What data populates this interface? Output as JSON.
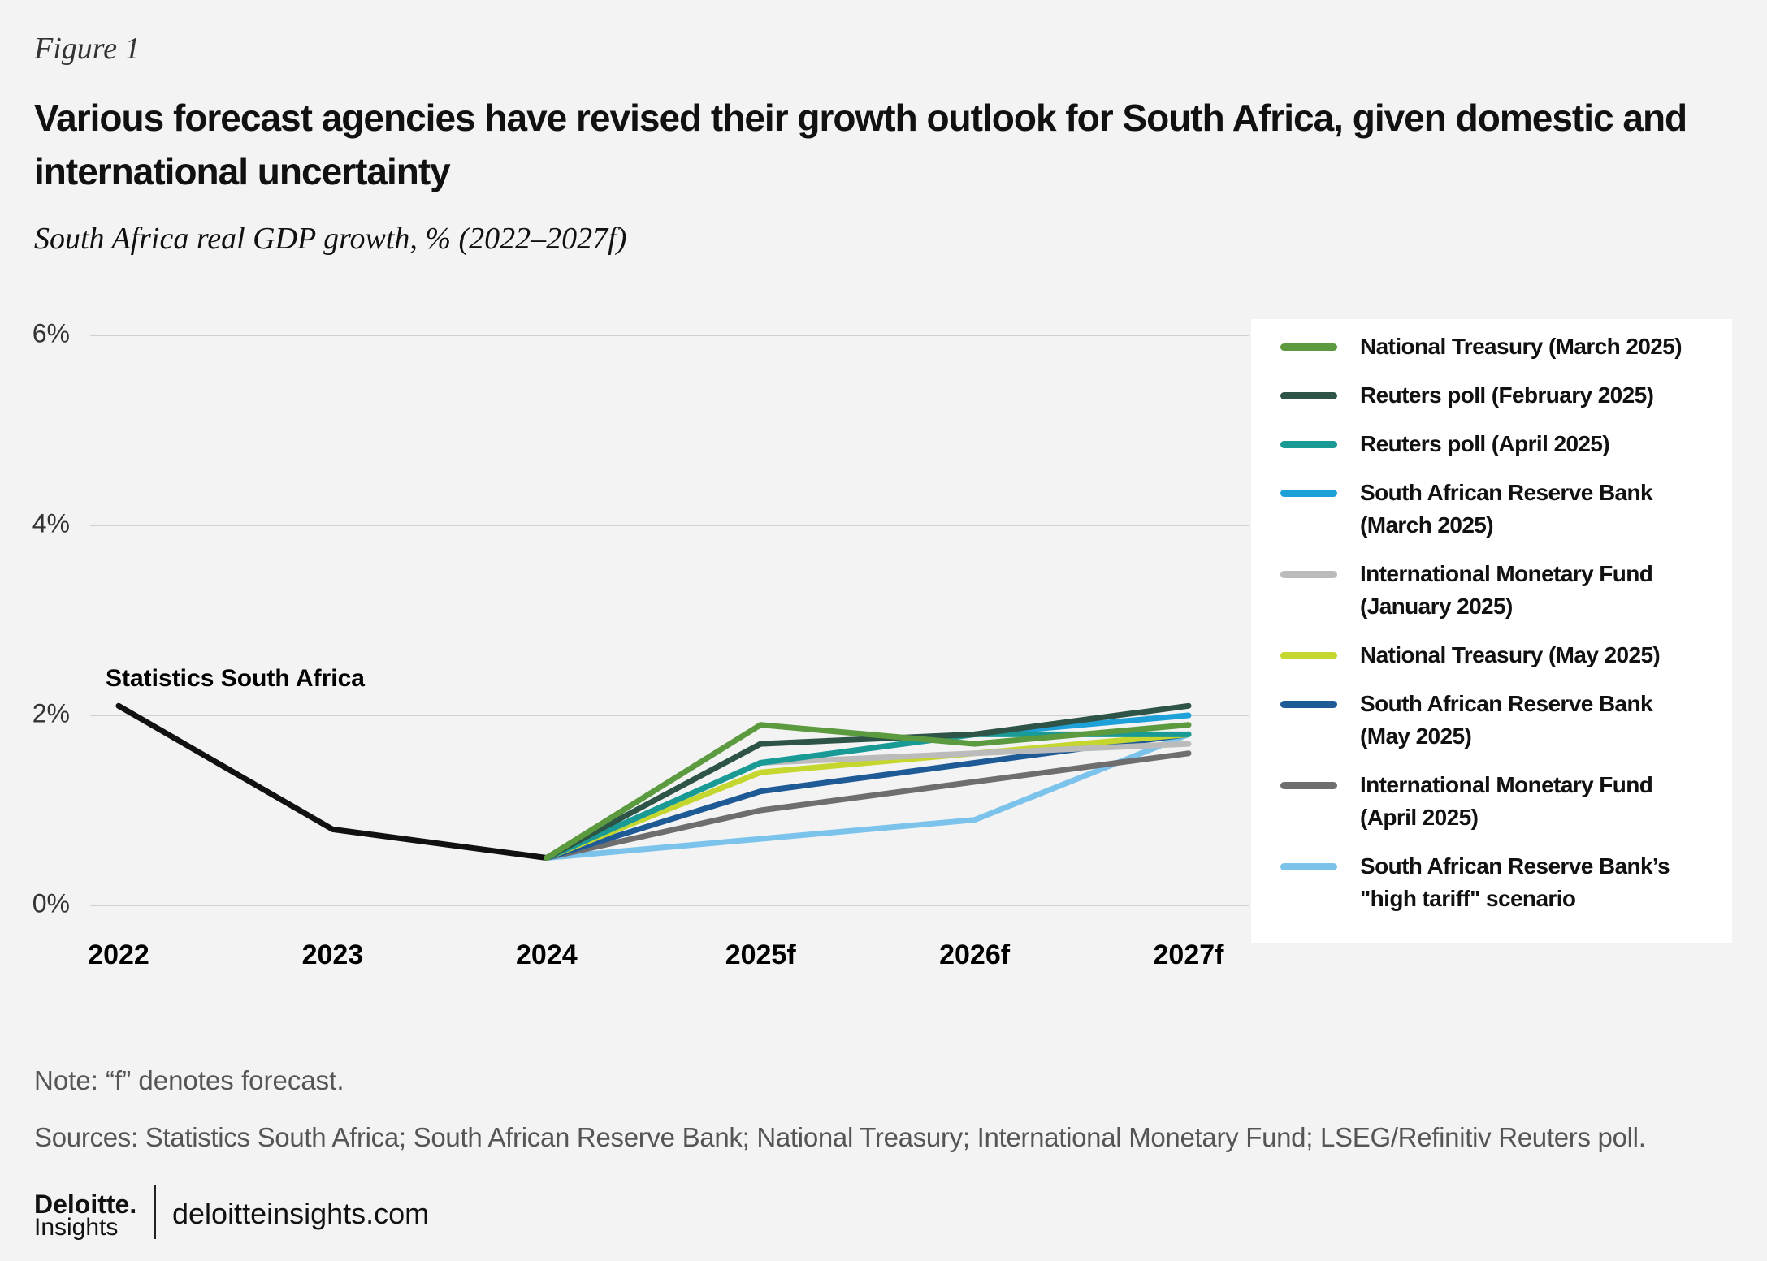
{
  "figure_label": "Figure 1",
  "chart_data": {
    "type": "line",
    "title": "Various forecast agencies have revised their growth outlook for South Africa, given domestic and international uncertainty",
    "subtitle": "South Africa real GDP growth, % (2022–2027f)",
    "categories": [
      "2022",
      "2023",
      "2024",
      "2025f",
      "2026f",
      "2027f"
    ],
    "ylim": [
      0,
      6
    ],
    "yticks": [
      {
        "value": 0,
        "label": "0%"
      },
      {
        "value": 2,
        "label": "2%"
      },
      {
        "value": 4,
        "label": "4%"
      },
      {
        "value": 6,
        "label": "6%"
      }
    ],
    "grid": true,
    "legend": "right",
    "annotation": "Statistics South Africa",
    "series": [
      {
        "name": "Statistics South Africa",
        "color": "#111111",
        "values": [
          2.1,
          0.8,
          0.5,
          null,
          null,
          null
        ],
        "in_legend": false
      },
      {
        "name": "South African Reserve Bank’s\n\"high tariff\" scenario",
        "color": "#7cc3ec",
        "values": [
          null,
          null,
          0.5,
          0.7,
          0.9,
          1.8
        ]
      },
      {
        "name": "International Monetary Fund\n(April 2025)",
        "color": "#6e6e6e",
        "values": [
          null,
          null,
          0.5,
          1.0,
          1.3,
          1.6
        ]
      },
      {
        "name": "South African Reserve Bank\n(May 2025)",
        "color": "#1e5a96",
        "values": [
          null,
          null,
          0.5,
          1.2,
          1.5,
          1.8
        ]
      },
      {
        "name": "National Treasury (May 2025)",
        "color": "#c5d62e",
        "values": [
          null,
          null,
          0.5,
          1.4,
          1.6,
          1.8
        ]
      },
      {
        "name": "International Monetary Fund\n(January 2025)",
        "color": "#bbbbbb",
        "values": [
          null,
          null,
          0.5,
          1.5,
          1.6,
          1.7
        ]
      },
      {
        "name": "South African Reserve Bank\n(March 2025)",
        "color": "#1ea0d8",
        "values": [
          null,
          null,
          0.5,
          1.5,
          1.8,
          2.0
        ]
      },
      {
        "name": "Reuters poll (April 2025)",
        "color": "#1a9a94",
        "values": [
          null,
          null,
          0.5,
          1.5,
          1.8,
          1.8
        ]
      },
      {
        "name": "Reuters poll (February 2025)",
        "color": "#2d5446",
        "values": [
          null,
          null,
          0.5,
          1.7,
          1.8,
          2.1
        ]
      },
      {
        "name": "National Treasury (March 2025)",
        "color": "#5b9a3f",
        "values": [
          null,
          null,
          0.5,
          1.9,
          1.7,
          1.9
        ]
      }
    ],
    "legend_order": [
      9,
      8,
      7,
      6,
      5,
      4,
      3,
      2,
      1
    ]
  },
  "note": "Note: “f” denotes forecast.",
  "sources": "Sources: Statistics South Africa; South African Reserve Bank; National Treasury; International Monetary Fund; LSEG/Refinitiv Reuters poll.",
  "footer": {
    "brand": "Deloitte.",
    "brand_sub": "Insights",
    "url": "deloitteinsights.com"
  }
}
